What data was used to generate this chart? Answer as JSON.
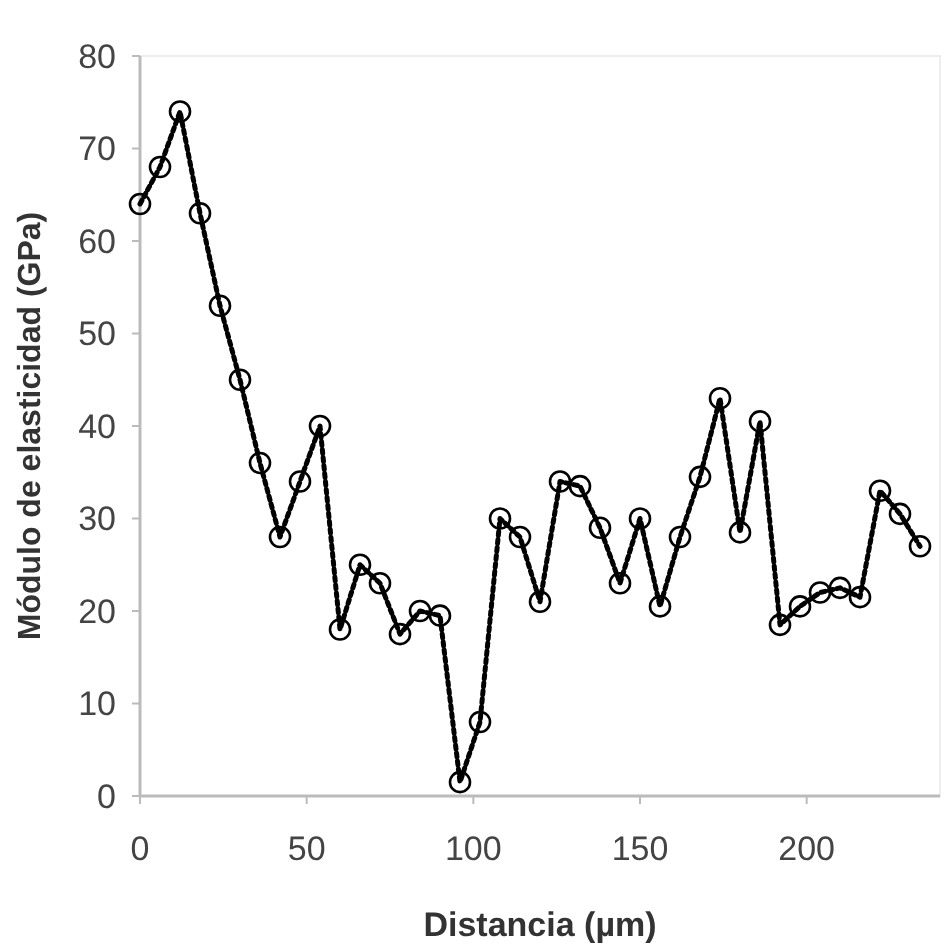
{
  "chart_data": {
    "type": "line",
    "xlabel": "Distancia (µm)",
    "ylabel": "Módulo de elasticidad (GPa)",
    "x": [
      0,
      6,
      12,
      18,
      24,
      30,
      36,
      42,
      48,
      54,
      60,
      66,
      72,
      78,
      84,
      90,
      96,
      102,
      108,
      114,
      120,
      126,
      132,
      138,
      144,
      150,
      156,
      162,
      168,
      174,
      180,
      186,
      192,
      198,
      204,
      210,
      216,
      222,
      228,
      234
    ],
    "series": [
      {
        "color": "#000000",
        "values": [
          64,
          68,
          74,
          63,
          53,
          45,
          36,
          28,
          34,
          40,
          18,
          25,
          23,
          17.5,
          20,
          19.5,
          1.5,
          8,
          30,
          28,
          21,
          34,
          33.5,
          29,
          23,
          30,
          20.5,
          28,
          34.5,
          43,
          28.5,
          40.5,
          18.5,
          20.5,
          22,
          22.5,
          21.5,
          33,
          30.5,
          27
        ]
      }
    ],
    "xlim": [
      0,
      240
    ],
    "xticks": [
      0,
      50,
      100,
      150,
      200
    ],
    "ylim": [
      0,
      80
    ],
    "yticks": [
      0,
      10,
      20,
      30,
      40,
      50,
      60,
      70,
      80
    ],
    "marker": "circle",
    "line_style": "dotted"
  }
}
